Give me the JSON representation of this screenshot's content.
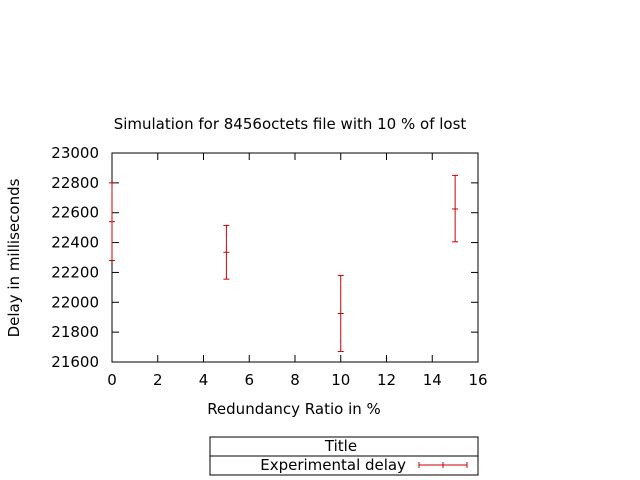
{
  "chart_data": {
    "type": "scatter",
    "title": "Simulation for 8456octets file with 10 % of lost",
    "xlabel": "Redundancy Ratio in %",
    "ylabel": "Delay in milliseconds",
    "xlim": [
      0,
      16
    ],
    "ylim": [
      21600,
      23000
    ],
    "xticks": [
      0,
      2,
      4,
      6,
      8,
      10,
      12,
      14,
      16
    ],
    "yticks": [
      21600,
      21800,
      22000,
      22200,
      22400,
      22600,
      22800,
      23000
    ],
    "grid": false,
    "legend": {
      "placement": "below",
      "title": "Title",
      "entries": [
        "Experimental delay"
      ]
    },
    "series": [
      {
        "name": "Experimental delay",
        "color": "#cc0000",
        "points": [
          {
            "x": 0,
            "y": 22540,
            "ylow": 22280,
            "yhigh": 22800
          },
          {
            "x": 5,
            "y": 22335,
            "ylow": 22155,
            "yhigh": 22515
          },
          {
            "x": 10,
            "y": 21925,
            "ylow": 21670,
            "yhigh": 22180
          },
          {
            "x": 15,
            "y": 22625,
            "ylow": 22405,
            "yhigh": 22850
          }
        ]
      }
    ]
  }
}
